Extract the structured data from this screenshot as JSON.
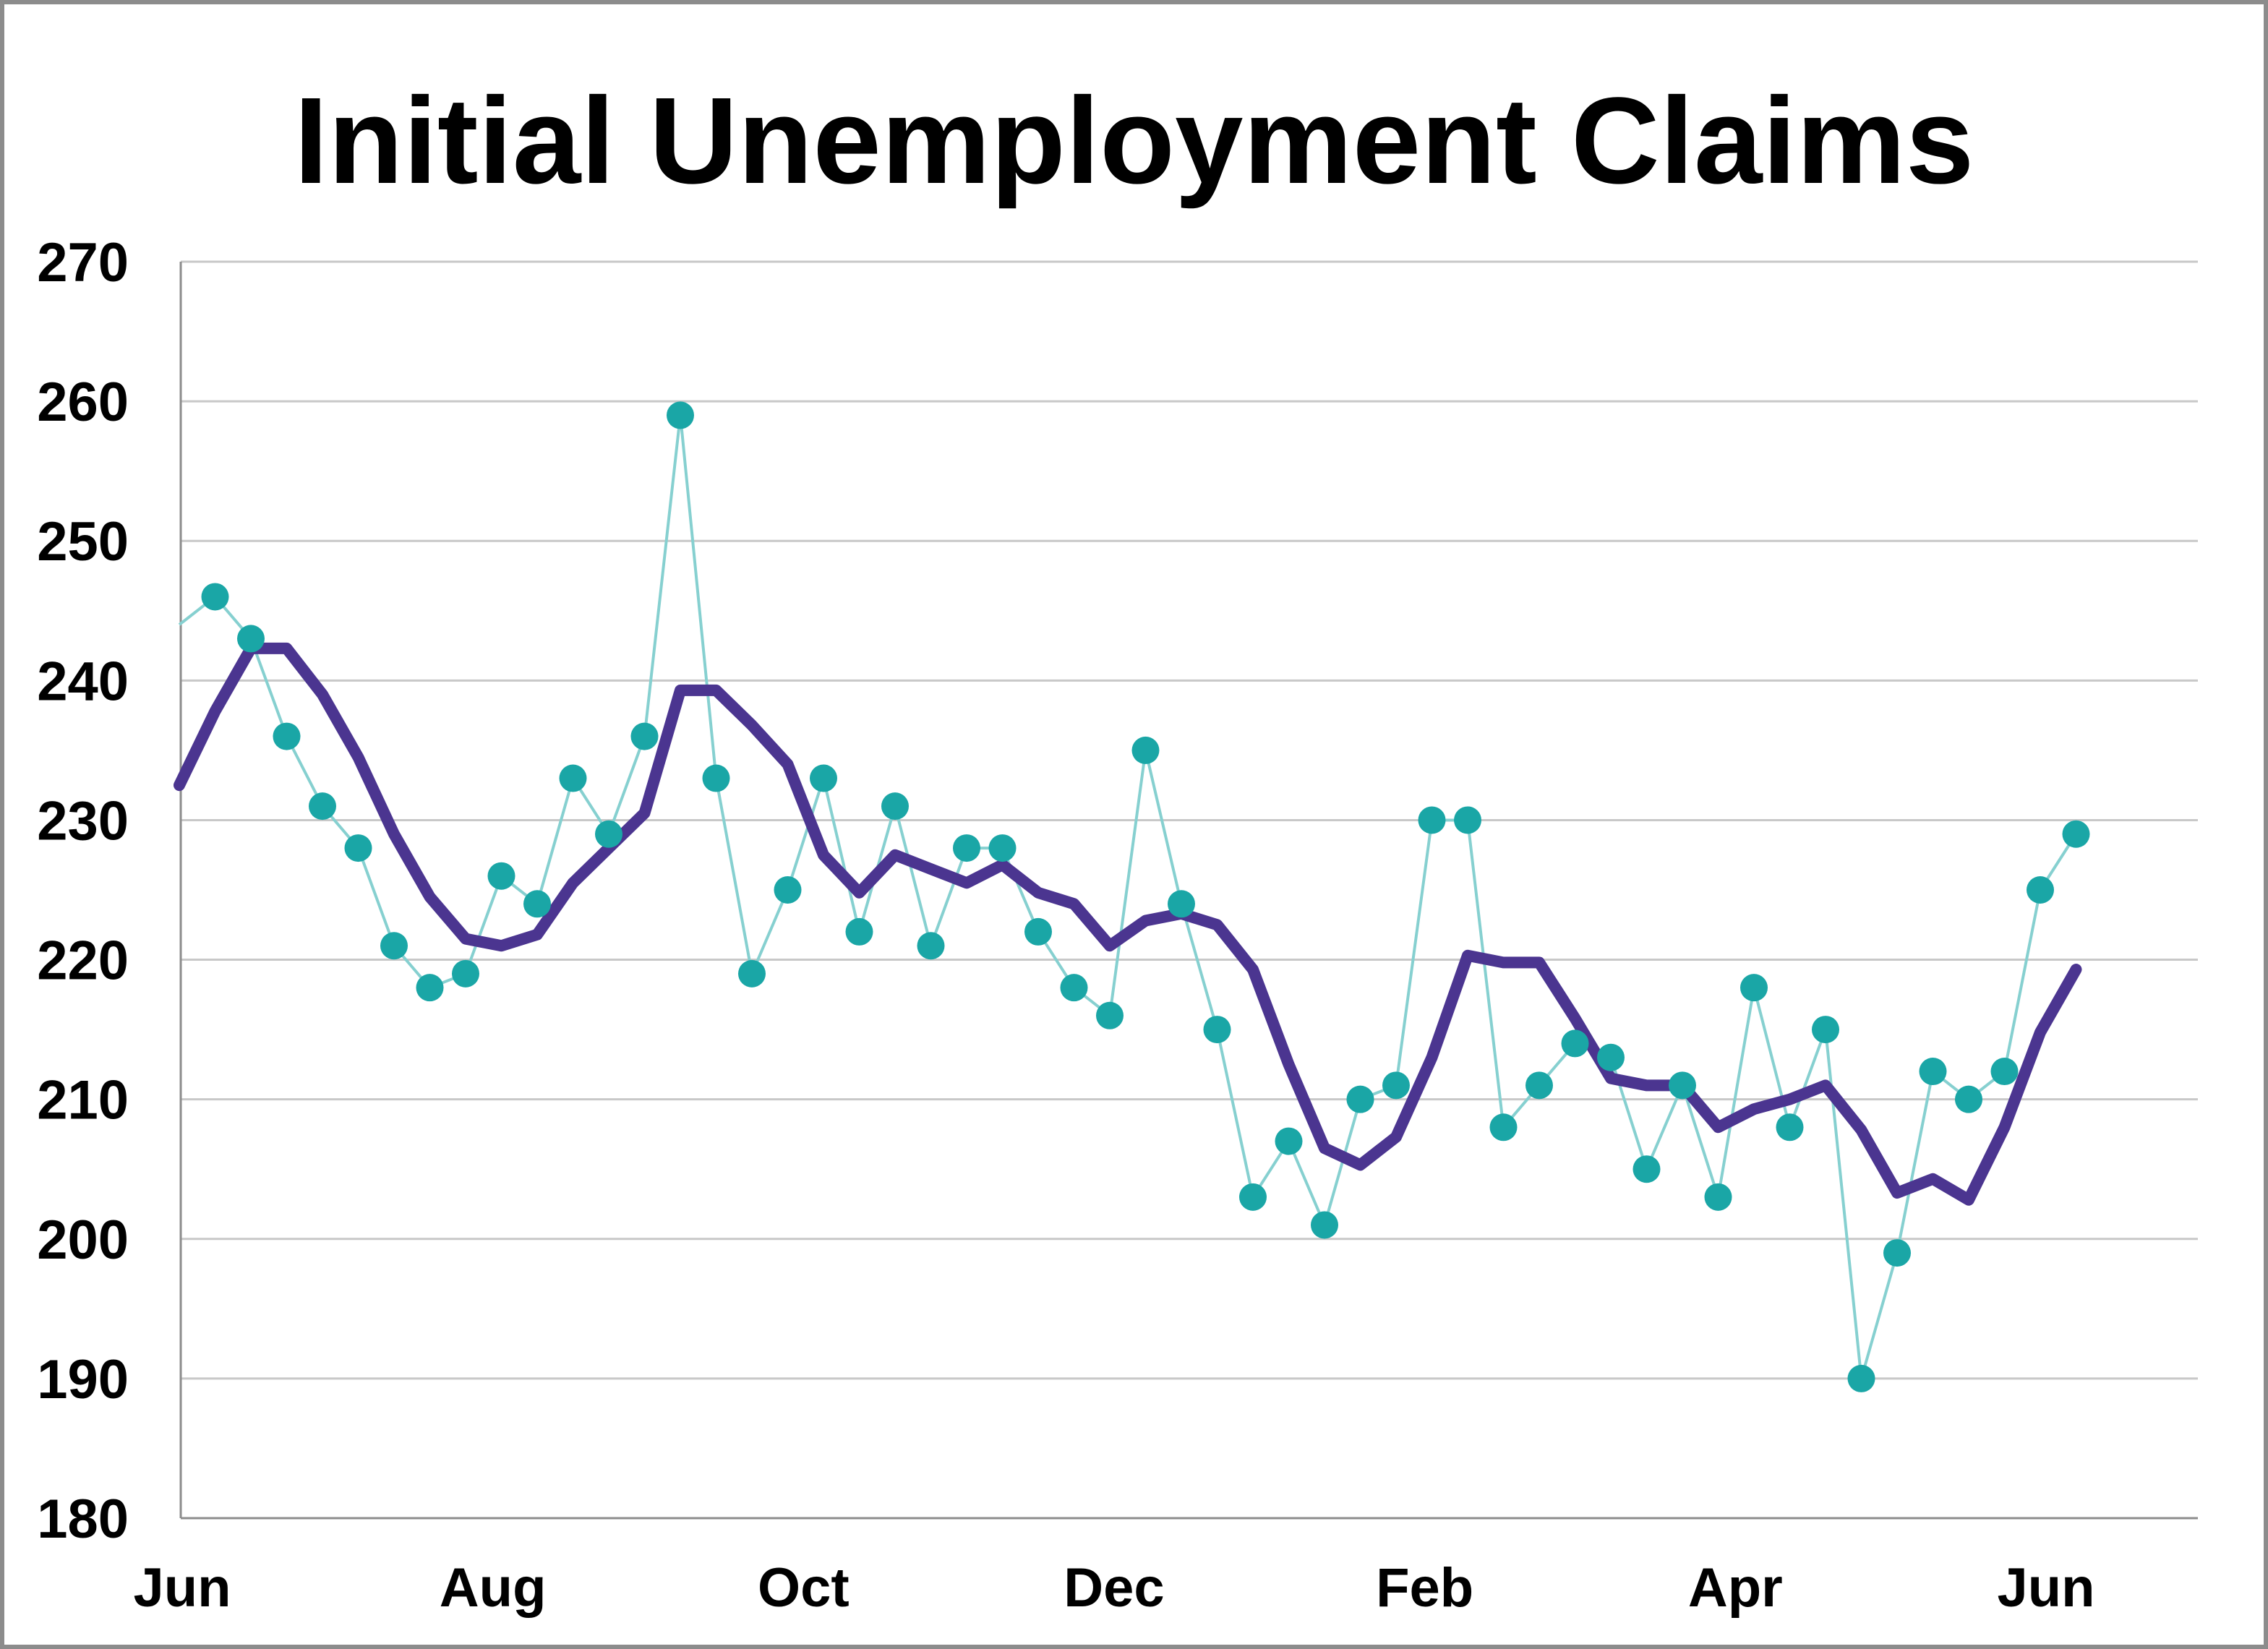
{
  "chart_data": {
    "type": "line",
    "title": "Initial Unemployment Claims",
    "xlabel": "",
    "ylabel": "",
    "ylim": [
      180,
      270
    ],
    "yticks": [
      180,
      190,
      200,
      210,
      220,
      230,
      240,
      250,
      260,
      270
    ],
    "xtick_labels": [
      "Jun",
      "Aug",
      "Oct",
      "Dec",
      "Feb",
      "Apr",
      "Jun"
    ],
    "grid": "horizontal",
    "legend": "none",
    "colors": {
      "weekly": "#1aa6a6",
      "weekly_line": "#86d0d0",
      "average": "#4b3590",
      "gridline": "#c8c8c8",
      "axis": "#8c8c8c"
    },
    "series": [
      {
        "marker": "circle",
        "values": [
          244,
          246,
          243,
          236,
          231,
          228,
          221,
          218,
          219,
          226,
          224,
          233,
          229,
          236,
          259,
          233,
          219,
          225,
          233,
          222,
          231,
          221,
          228,
          228,
          222,
          218,
          216,
          235,
          224,
          215,
          203,
          207,
          201,
          210,
          211,
          230,
          230,
          208,
          211,
          214,
          213,
          205,
          211,
          203,
          218,
          208,
          215,
          190,
          199,
          212,
          210,
          212,
          225,
          229
        ]
      },
      {
        "marker": "none",
        "values": [
          232.5,
          237.8,
          242.3,
          242.3,
          239,
          234.5,
          229,
          224.5,
          221.5,
          221,
          221.8,
          225.5,
          228,
          230.5,
          239.3,
          239.3,
          236.8,
          234,
          227.5,
          224.8,
          227.5,
          226.5,
          225.5,
          226.8,
          224.8,
          224,
          221,
          222.8,
          223.3,
          222.5,
          219.3,
          212.5,
          206.5,
          205.3,
          207.3,
          213,
          220.3,
          219.8,
          219.8,
          215.8,
          211.5,
          211,
          211,
          208,
          209.3,
          210,
          211,
          207.8,
          203.3,
          204.3,
          202.8,
          208,
          214.8,
          219.3
        ]
      }
    ]
  }
}
